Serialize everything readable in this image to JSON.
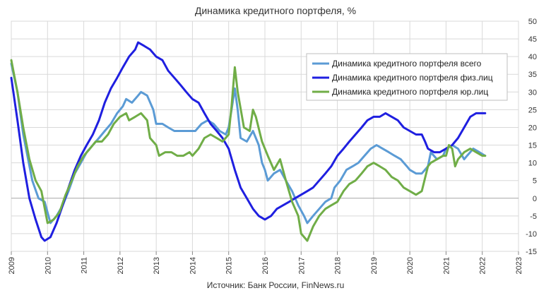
{
  "chart_data": {
    "type": "line",
    "title": "Динамика  кредитного портфеля, %",
    "source": "Источник: Банк России, FinNews.ru",
    "xlim": [
      2009,
      2023
    ],
    "ylim": [
      -15,
      50
    ],
    "x_ticks": [
      "2009",
      "2010",
      "2011",
      "2012",
      "2013",
      "2014",
      "2015",
      "2016",
      "2017",
      "2018",
      "2019",
      "2020",
      "2021",
      "2022",
      "2023"
    ],
    "y_ticks": [
      "-15",
      "-10",
      "-5",
      "0",
      "5",
      "10",
      "15",
      "20",
      "25",
      "30",
      "35",
      "40",
      "45",
      "50"
    ],
    "grid": true,
    "legend_position": "top-right",
    "series": [
      {
        "name": "Динамика кредитного портфеля всего",
        "color": "#5b9bd5",
        "points": [
          [
            2009.0,
            38
          ],
          [
            2009.17,
            30
          ],
          [
            2009.33,
            18
          ],
          [
            2009.58,
            5
          ],
          [
            2009.75,
            0
          ],
          [
            2009.92,
            -1
          ],
          [
            2010.08,
            -7
          ],
          [
            2010.25,
            -5
          ],
          [
            2010.42,
            -2
          ],
          [
            2010.58,
            2
          ],
          [
            2010.75,
            7
          ],
          [
            2010.92,
            10
          ],
          [
            2011.08,
            13
          ],
          [
            2011.25,
            15
          ],
          [
            2011.42,
            17
          ],
          [
            2011.58,
            19
          ],
          [
            2011.75,
            21
          ],
          [
            2011.92,
            24
          ],
          [
            2012.08,
            26
          ],
          [
            2012.17,
            28
          ],
          [
            2012.33,
            27
          ],
          [
            2012.5,
            29
          ],
          [
            2012.58,
            30
          ],
          [
            2012.75,
            29
          ],
          [
            2012.92,
            25
          ],
          [
            2013.0,
            21
          ],
          [
            2013.17,
            21
          ],
          [
            2013.33,
            20
          ],
          [
            2013.5,
            19
          ],
          [
            2013.67,
            19
          ],
          [
            2013.92,
            19
          ],
          [
            2014.08,
            19
          ],
          [
            2014.25,
            21
          ],
          [
            2014.42,
            22
          ],
          [
            2014.58,
            21
          ],
          [
            2014.75,
            19
          ],
          [
            2014.92,
            18
          ],
          [
            2015.0,
            20
          ],
          [
            2015.08,
            25
          ],
          [
            2015.17,
            31
          ],
          [
            2015.25,
            25
          ],
          [
            2015.33,
            17
          ],
          [
            2015.5,
            16
          ],
          [
            2015.67,
            19
          ],
          [
            2015.83,
            15
          ],
          [
            2015.92,
            10
          ],
          [
            2016.0,
            8
          ],
          [
            2016.08,
            5
          ],
          [
            2016.25,
            7
          ],
          [
            2016.42,
            8
          ],
          [
            2016.58,
            5
          ],
          [
            2016.75,
            2
          ],
          [
            2016.92,
            -2
          ],
          [
            2017.08,
            -5
          ],
          [
            2017.17,
            -7
          ],
          [
            2017.33,
            -5
          ],
          [
            2017.5,
            -3
          ],
          [
            2017.67,
            -1
          ],
          [
            2017.83,
            0
          ],
          [
            2017.92,
            3
          ],
          [
            2018.08,
            5
          ],
          [
            2018.25,
            8
          ],
          [
            2018.42,
            9
          ],
          [
            2018.58,
            10
          ],
          [
            2018.75,
            12
          ],
          [
            2018.92,
            14
          ],
          [
            2019.08,
            15
          ],
          [
            2019.25,
            14
          ],
          [
            2019.42,
            13
          ],
          [
            2019.58,
            12
          ],
          [
            2019.75,
            11
          ],
          [
            2019.92,
            9
          ],
          [
            2020.0,
            8
          ],
          [
            2020.17,
            7
          ],
          [
            2020.33,
            7
          ],
          [
            2020.5,
            9
          ],
          [
            2020.58,
            13
          ],
          [
            2020.75,
            11
          ],
          [
            2020.92,
            12
          ],
          [
            2021.0,
            14
          ],
          [
            2021.17,
            15
          ],
          [
            2021.33,
            14
          ],
          [
            2021.5,
            11
          ],
          [
            2021.58,
            12
          ],
          [
            2021.75,
            14
          ],
          [
            2021.92,
            13
          ],
          [
            2022.08,
            12
          ]
        ]
      },
      {
        "name": "Динамика кредитного портфеля физ.лиц",
        "color": "#1f1fe0",
        "points": [
          [
            2009.0,
            34
          ],
          [
            2009.17,
            22
          ],
          [
            2009.33,
            10
          ],
          [
            2009.5,
            0
          ],
          [
            2009.67,
            -6
          ],
          [
            2009.83,
            -11
          ],
          [
            2009.92,
            -12
          ],
          [
            2010.08,
            -11
          ],
          [
            2010.25,
            -7
          ],
          [
            2010.42,
            -2
          ],
          [
            2010.58,
            3
          ],
          [
            2010.75,
            8
          ],
          [
            2010.92,
            12
          ],
          [
            2011.08,
            15
          ],
          [
            2011.25,
            18
          ],
          [
            2011.42,
            22
          ],
          [
            2011.58,
            27
          ],
          [
            2011.75,
            31
          ],
          [
            2011.92,
            34
          ],
          [
            2012.08,
            37
          ],
          [
            2012.25,
            40
          ],
          [
            2012.42,
            42
          ],
          [
            2012.5,
            44
          ],
          [
            2012.67,
            43
          ],
          [
            2012.83,
            42
          ],
          [
            2013.0,
            40
          ],
          [
            2013.17,
            39
          ],
          [
            2013.33,
            36
          ],
          [
            2013.5,
            34
          ],
          [
            2013.67,
            32
          ],
          [
            2013.83,
            30
          ],
          [
            2014.0,
            28
          ],
          [
            2014.17,
            27
          ],
          [
            2014.33,
            24
          ],
          [
            2014.5,
            21
          ],
          [
            2014.67,
            19
          ],
          [
            2014.83,
            17
          ],
          [
            2015.0,
            14
          ],
          [
            2015.17,
            8
          ],
          [
            2015.33,
            3
          ],
          [
            2015.5,
            0
          ],
          [
            2015.67,
            -3
          ],
          [
            2015.83,
            -5
          ],
          [
            2016.0,
            -6
          ],
          [
            2016.17,
            -5
          ],
          [
            2016.33,
            -3
          ],
          [
            2016.5,
            -2
          ],
          [
            2016.67,
            -1
          ],
          [
            2016.83,
            0
          ],
          [
            2017.0,
            1
          ],
          [
            2017.17,
            2
          ],
          [
            2017.33,
            3
          ],
          [
            2017.5,
            5
          ],
          [
            2017.67,
            7
          ],
          [
            2017.83,
            9
          ],
          [
            2018.0,
            12
          ],
          [
            2018.17,
            14
          ],
          [
            2018.33,
            16
          ],
          [
            2018.5,
            18
          ],
          [
            2018.67,
            20
          ],
          [
            2018.83,
            22
          ],
          [
            2019.0,
            23
          ],
          [
            2019.17,
            23
          ],
          [
            2019.33,
            24
          ],
          [
            2019.5,
            23
          ],
          [
            2019.67,
            22
          ],
          [
            2019.83,
            20
          ],
          [
            2020.0,
            19
          ],
          [
            2020.17,
            18
          ],
          [
            2020.33,
            18
          ],
          [
            2020.42,
            16
          ],
          [
            2020.5,
            14
          ],
          [
            2020.67,
            13
          ],
          [
            2020.83,
            13
          ],
          [
            2021.0,
            14
          ],
          [
            2021.17,
            15
          ],
          [
            2021.33,
            17
          ],
          [
            2021.5,
            20
          ],
          [
            2021.67,
            23
          ],
          [
            2021.83,
            24
          ],
          [
            2022.0,
            24
          ],
          [
            2022.08,
            24
          ]
        ]
      },
      {
        "name": "Динамика кредитного портфеля юр.лиц",
        "color": "#70ad47",
        "points": [
          [
            2009.0,
            39
          ],
          [
            2009.17,
            30
          ],
          [
            2009.33,
            20
          ],
          [
            2009.5,
            11
          ],
          [
            2009.67,
            5
          ],
          [
            2009.83,
            2
          ],
          [
            2010.0,
            -7
          ],
          [
            2010.17,
            -6
          ],
          [
            2010.33,
            -4
          ],
          [
            2010.5,
            1
          ],
          [
            2010.67,
            5
          ],
          [
            2010.83,
            9
          ],
          [
            2011.0,
            12
          ],
          [
            2011.17,
            14
          ],
          [
            2011.33,
            16
          ],
          [
            2011.5,
            16
          ],
          [
            2011.67,
            18
          ],
          [
            2011.83,
            21
          ],
          [
            2012.0,
            23
          ],
          [
            2012.17,
            24
          ],
          [
            2012.25,
            22
          ],
          [
            2012.42,
            23
          ],
          [
            2012.58,
            24
          ],
          [
            2012.75,
            22
          ],
          [
            2012.83,
            17
          ],
          [
            2013.0,
            15
          ],
          [
            2013.08,
            12
          ],
          [
            2013.25,
            13
          ],
          [
            2013.42,
            13
          ],
          [
            2013.58,
            12
          ],
          [
            2013.75,
            12
          ],
          [
            2013.92,
            13
          ],
          [
            2014.0,
            12
          ],
          [
            2014.17,
            14
          ],
          [
            2014.33,
            17
          ],
          [
            2014.5,
            18
          ],
          [
            2014.67,
            17
          ],
          [
            2014.83,
            16
          ],
          [
            2015.0,
            18
          ],
          [
            2015.08,
            26
          ],
          [
            2015.17,
            37
          ],
          [
            2015.25,
            30
          ],
          [
            2015.42,
            20
          ],
          [
            2015.58,
            19
          ],
          [
            2015.67,
            25
          ],
          [
            2015.75,
            23
          ],
          [
            2015.92,
            16
          ],
          [
            2016.08,
            12
          ],
          [
            2016.25,
            8
          ],
          [
            2016.42,
            11
          ],
          [
            2016.58,
            5
          ],
          [
            2016.75,
            -1
          ],
          [
            2016.92,
            -5
          ],
          [
            2017.0,
            -10
          ],
          [
            2017.17,
            -12
          ],
          [
            2017.33,
            -8
          ],
          [
            2017.5,
            -5
          ],
          [
            2017.67,
            -3
          ],
          [
            2017.83,
            -2
          ],
          [
            2018.0,
            -1
          ],
          [
            2018.17,
            2
          ],
          [
            2018.33,
            4
          ],
          [
            2018.5,
            5
          ],
          [
            2018.67,
            7
          ],
          [
            2018.83,
            9
          ],
          [
            2019.0,
            10
          ],
          [
            2019.17,
            9
          ],
          [
            2019.33,
            8
          ],
          [
            2019.5,
            6
          ],
          [
            2019.67,
            5
          ],
          [
            2019.83,
            3
          ],
          [
            2020.0,
            2
          ],
          [
            2020.17,
            1
          ],
          [
            2020.33,
            2
          ],
          [
            2020.5,
            9
          ],
          [
            2020.58,
            10
          ],
          [
            2020.75,
            11
          ],
          [
            2020.92,
            12
          ],
          [
            2021.0,
            12
          ],
          [
            2021.08,
            15
          ],
          [
            2021.17,
            14
          ],
          [
            2021.25,
            9
          ],
          [
            2021.33,
            11
          ],
          [
            2021.5,
            13
          ],
          [
            2021.67,
            14
          ],
          [
            2021.83,
            13
          ],
          [
            2022.0,
            12
          ],
          [
            2022.08,
            12
          ]
        ]
      }
    ]
  }
}
